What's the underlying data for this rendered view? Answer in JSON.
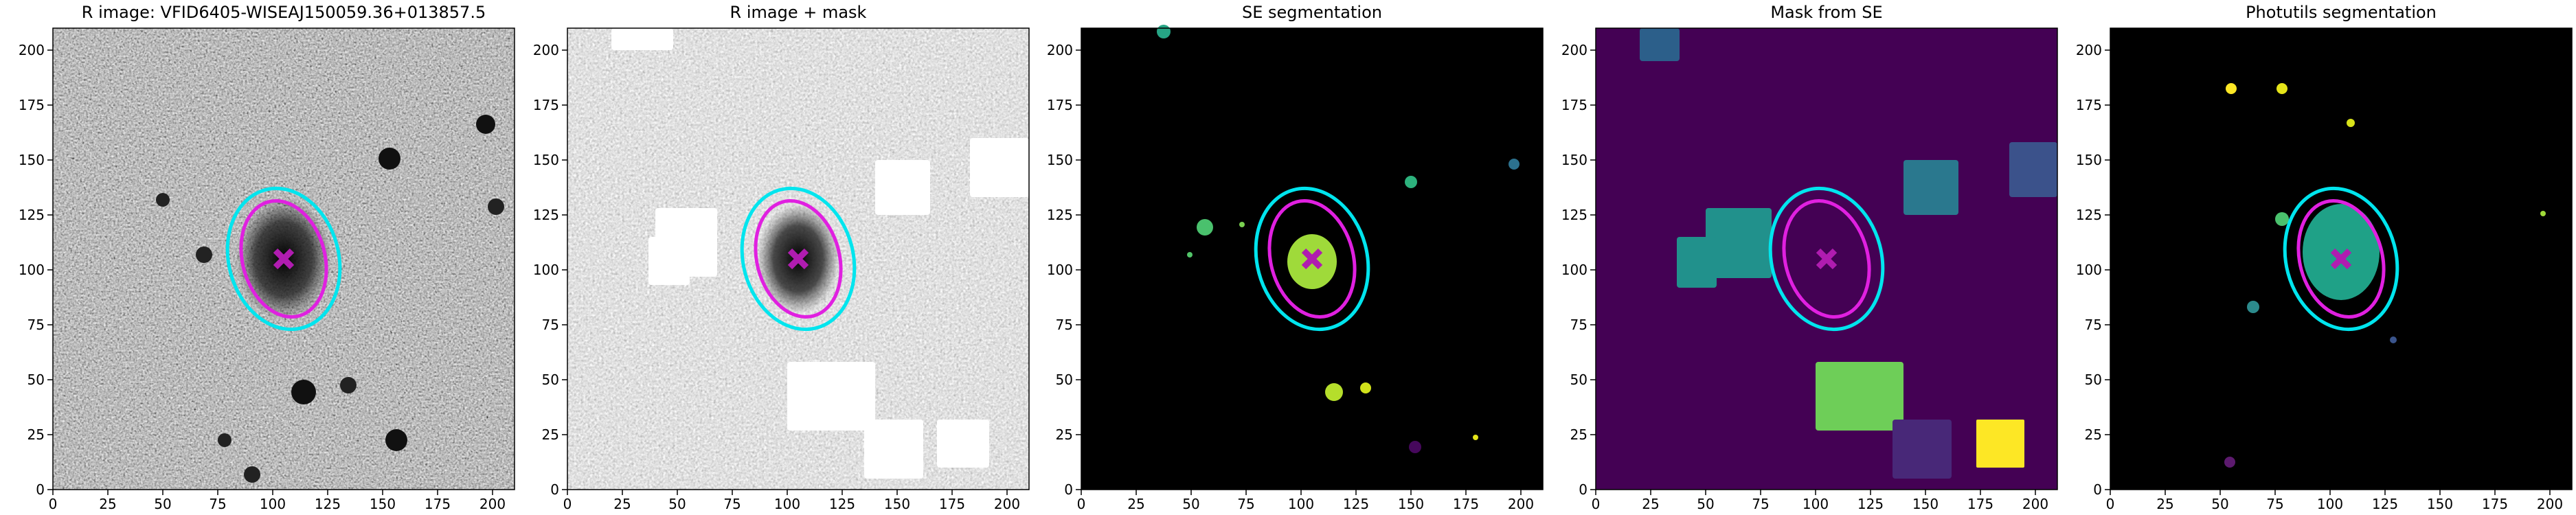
{
  "chart_data": [
    {
      "type": "image",
      "title": "R image: VFID6405-WISEAJ150059.36+013857.5",
      "xlim": [
        0,
        210
      ],
      "ylim": [
        0,
        210
      ],
      "xticks": [
        0,
        25,
        50,
        75,
        100,
        125,
        150,
        175,
        200
      ],
      "yticks": [
        0,
        25,
        50,
        75,
        100,
        125,
        150,
        175,
        200
      ]
    },
    {
      "type": "image",
      "title": "R image + mask",
      "xlim": [
        0,
        210
      ],
      "ylim": [
        0,
        210
      ],
      "xticks": [
        0,
        25,
        50,
        75,
        100,
        125,
        150,
        175,
        200
      ],
      "yticks": [
        0,
        25,
        50,
        75,
        100,
        125,
        150,
        175,
        200
      ]
    },
    {
      "type": "image",
      "title": "SE segmentation",
      "xlim": [
        0,
        210
      ],
      "ylim": [
        0,
        210
      ],
      "xticks": [
        0,
        25,
        50,
        75,
        100,
        125,
        150,
        175,
        200
      ],
      "yticks": [
        0,
        25,
        50,
        75,
        100,
        125,
        150,
        175,
        200
      ]
    },
    {
      "type": "image",
      "title": "Mask from SE",
      "xlim": [
        0,
        210
      ],
      "ylim": [
        0,
        210
      ],
      "xticks": [
        0,
        25,
        50,
        75,
        100,
        125,
        150,
        175,
        200
      ],
      "yticks": [
        0,
        25,
        50,
        75,
        100,
        125,
        150,
        175,
        200
      ]
    },
    {
      "type": "image",
      "title": "Photutils segmentation",
      "xlim": [
        0,
        210
      ],
      "ylim": [
        0,
        210
      ],
      "xticks": [
        0,
        25,
        50,
        75,
        100,
        125,
        150,
        175,
        200
      ],
      "yticks": [
        0,
        25,
        50,
        75,
        100,
        125,
        150,
        175,
        200
      ]
    }
  ]
}
